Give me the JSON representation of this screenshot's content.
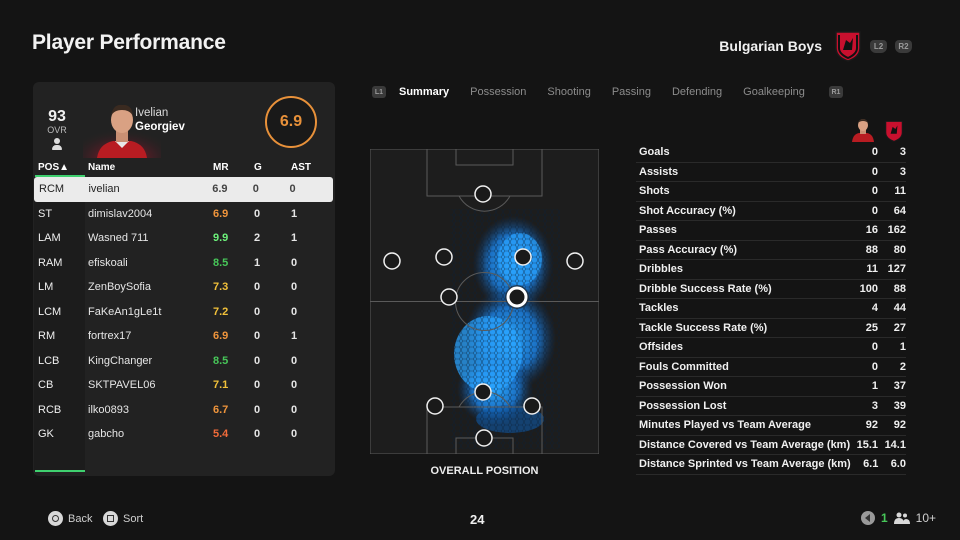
{
  "header": {
    "title": "Player Performance",
    "team_name": "Bulgarian Boys",
    "l2": "L2",
    "r2": "R2"
  },
  "player": {
    "ovr": "93",
    "ovr_label": "OVR",
    "first_name": "Ivelian",
    "last_name": "Georgiev",
    "rating": "6.9"
  },
  "table": {
    "headers": {
      "pos": "POS▲",
      "name": "Name",
      "mr": "MR",
      "g": "G",
      "ast": "AST"
    },
    "rows": [
      {
        "pos": "RCM",
        "name": "ivelian",
        "mr": "6.9",
        "g": "0",
        "ast": "0",
        "mr_color": "selected",
        "selected": true
      },
      {
        "pos": "ST",
        "name": "dimislav2004",
        "mr": "6.9",
        "g": "0",
        "ast": "1",
        "mr_color": "orange"
      },
      {
        "pos": "LAM",
        "name": "Wasned 711",
        "mr": "9.9",
        "g": "2",
        "ast": "1",
        "mr_color": "bright"
      },
      {
        "pos": "RAM",
        "name": "efiskoali",
        "mr": "8.5",
        "g": "1",
        "ast": "0",
        "mr_color": "green"
      },
      {
        "pos": "LM",
        "name": "ZenBoySofia",
        "mr": "7.3",
        "g": "0",
        "ast": "0",
        "mr_color": "yellow"
      },
      {
        "pos": "LCM",
        "name": "FaKeAn1gLe1t",
        "mr": "7.2",
        "g": "0",
        "ast": "0",
        "mr_color": "yellow"
      },
      {
        "pos": "RM",
        "name": "fortrex17",
        "mr": "6.9",
        "g": "0",
        "ast": "1",
        "mr_color": "orange"
      },
      {
        "pos": "LCB",
        "name": "KingChanger",
        "mr": "8.5",
        "g": "0",
        "ast": "0",
        "mr_color": "green"
      },
      {
        "pos": "CB",
        "name": "SKTPAVEL06",
        "mr": "7.1",
        "g": "0",
        "ast": "0",
        "mr_color": "yellow"
      },
      {
        "pos": "RCB",
        "name": "ilko0893",
        "mr": "6.7",
        "g": "0",
        "ast": "0",
        "mr_color": "orange"
      },
      {
        "pos": "GK",
        "name": "gabcho",
        "mr": "5.4",
        "g": "0",
        "ast": "0",
        "mr_color": "red"
      }
    ]
  },
  "tabs": {
    "l1": "L1",
    "r1": "R1",
    "items": [
      "Summary",
      "Possession",
      "Shooting",
      "Passing",
      "Defending",
      "Goalkeeping"
    ],
    "active": "Summary"
  },
  "pitch": {
    "caption": "OVERALL POSITION"
  },
  "stats": [
    {
      "label": "Goals",
      "player": "0",
      "team": "3"
    },
    {
      "label": "Assists",
      "player": "0",
      "team": "3"
    },
    {
      "label": "Shots",
      "player": "0",
      "team": "11"
    },
    {
      "label": "Shot Accuracy (%)",
      "player": "0",
      "team": "64"
    },
    {
      "label": "Passes",
      "player": "16",
      "team": "162"
    },
    {
      "label": "Pass Accuracy (%)",
      "player": "88",
      "team": "80"
    },
    {
      "label": "Dribbles",
      "player": "11",
      "team": "127"
    },
    {
      "label": "Dribble Success Rate (%)",
      "player": "100",
      "team": "88"
    },
    {
      "label": "Tackles",
      "player": "4",
      "team": "44"
    },
    {
      "label": "Tackle Success Rate (%)",
      "player": "25",
      "team": "27"
    },
    {
      "label": "Offsides",
      "player": "0",
      "team": "1"
    },
    {
      "label": "Fouls Committed",
      "player": "0",
      "team": "2"
    },
    {
      "label": "Possession Won",
      "player": "1",
      "team": "37"
    },
    {
      "label": "Possession Lost",
      "player": "3",
      "team": "39"
    },
    {
      "label": "Minutes Played vs Team Average",
      "player": "92",
      "team": "92"
    },
    {
      "label": "Distance Covered vs Team Average (km)",
      "player": "15.1",
      "team": "14.1"
    },
    {
      "label": "Distance Sprinted vs Team Average (km)",
      "player": "6.1",
      "team": "6.0"
    }
  ],
  "footer": {
    "back_label": "Back",
    "sort_label": "Sort",
    "page": "24",
    "count": "1",
    "players": "10+"
  },
  "colors": {
    "accent_green": "#3fd06f",
    "rating_orange": "#e8913a",
    "heatmap_blue": "#1e90ff"
  }
}
